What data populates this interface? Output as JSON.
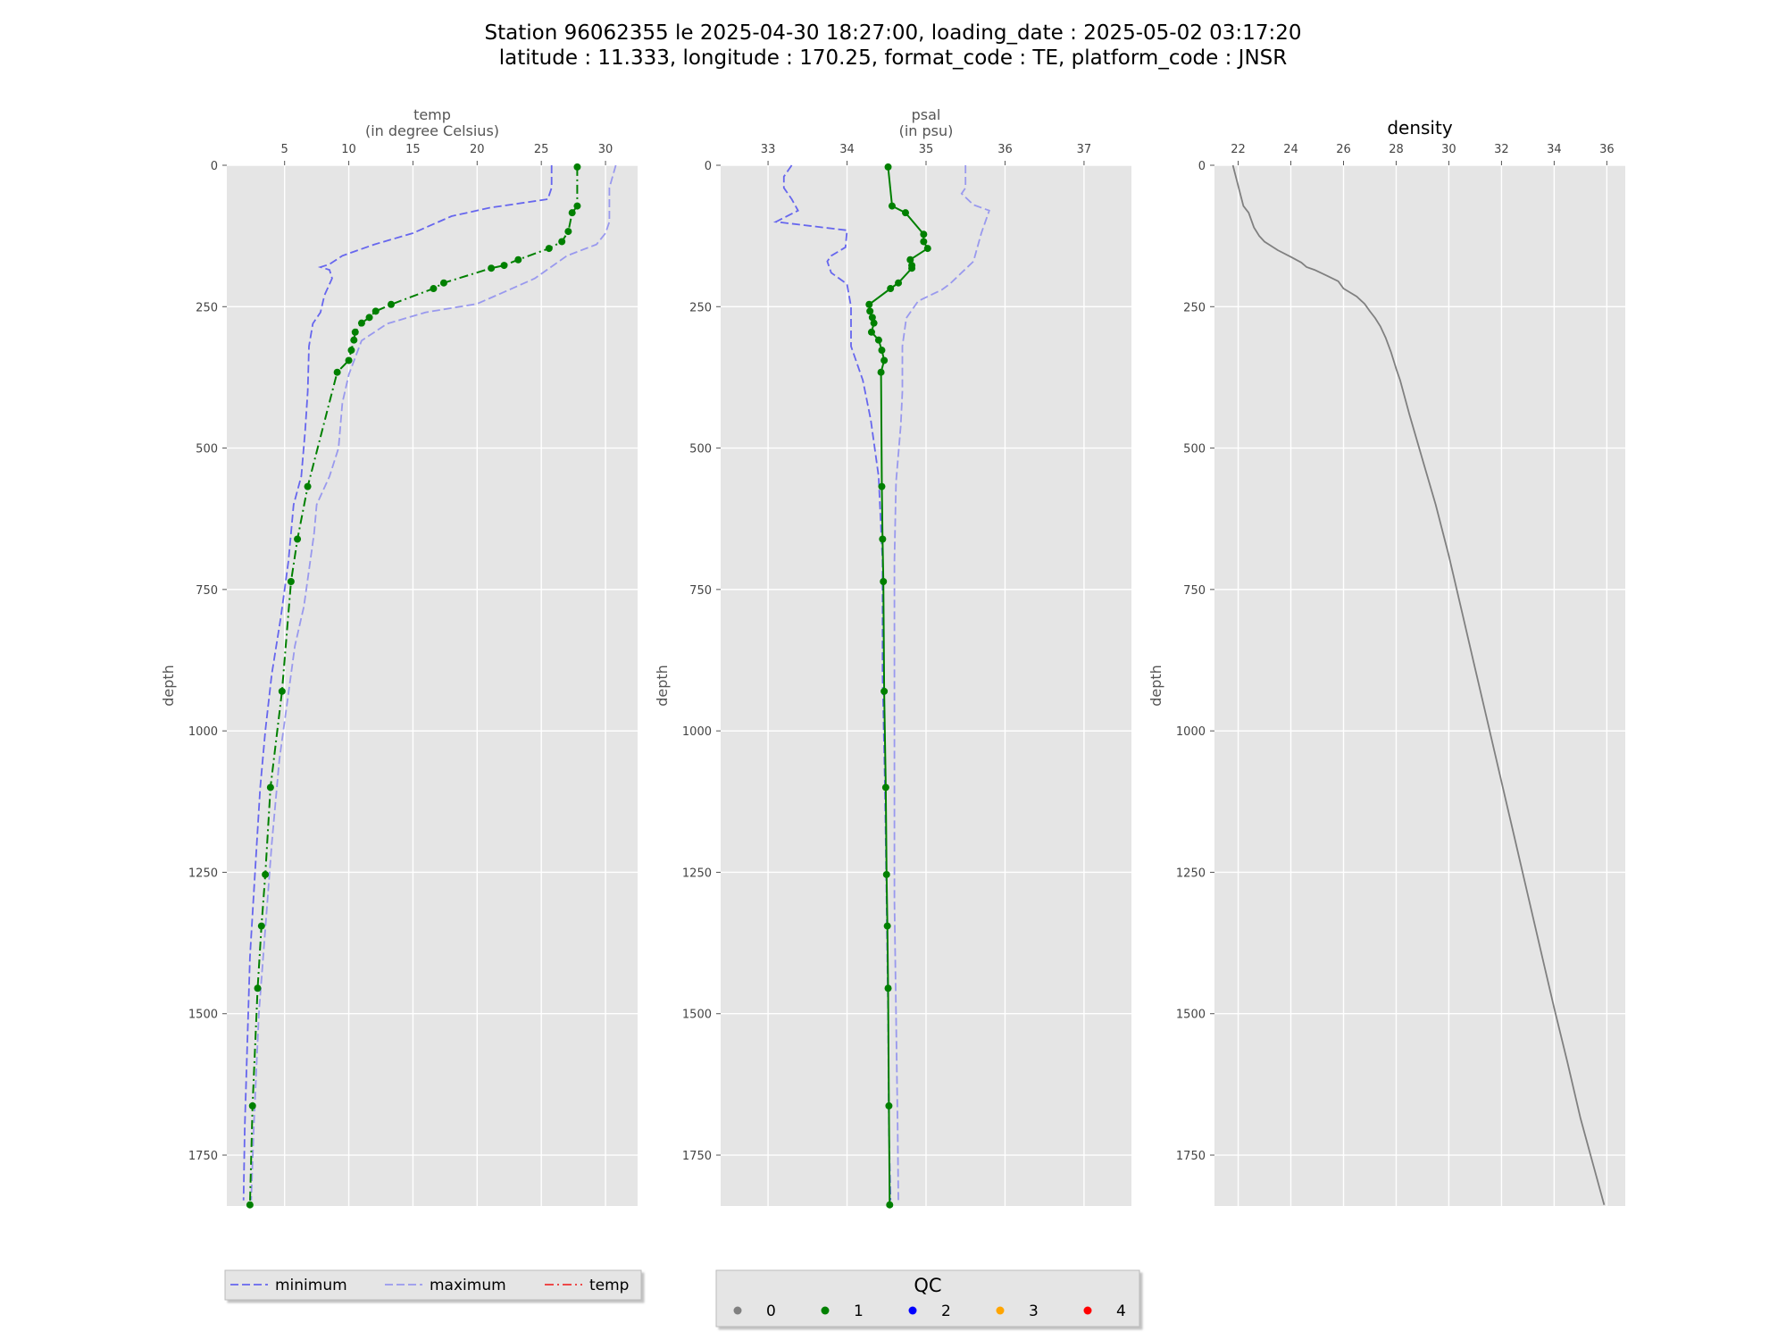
{
  "title": {
    "line1": "Station 96062355 le 2025-04-30 18:27:00, loading_date : 2025-05-02 03:17:20",
    "line2": "latitude : 11.333, longitude : 170.25, format_code : TE, platform_code : JNSR"
  },
  "colors": {
    "panel_bg": "#e5e5e5",
    "grid": "#ffffff",
    "minimum": "#6666ee",
    "maximum": "#9999ee",
    "profile": "#008000",
    "density": "#808080",
    "legend_temp": "#ee3333"
  },
  "chart_data": [
    {
      "type": "line",
      "id": "temp",
      "xlabel_line1": "temp",
      "xlabel_line2": "(in degree Celsius)",
      "ylabel": "depth",
      "xlim": [
        0.5,
        32.5
      ],
      "ylim": [
        1840,
        0
      ],
      "y_inverted": true,
      "x_axis_position": "top",
      "xticks": [
        5,
        10,
        15,
        20,
        25,
        30
      ],
      "yticks": [
        0,
        250,
        500,
        750,
        1000,
        1250,
        1500,
        1750
      ],
      "grid": true,
      "series": [
        {
          "name": "minimum",
          "style": "dashed",
          "color": "#6666ee",
          "points": [
            [
              25.8,
              0
            ],
            [
              25.8,
              40
            ],
            [
              25.5,
              60
            ],
            [
              21,
              75
            ],
            [
              18,
              90
            ],
            [
              15,
              120
            ],
            [
              12,
              140
            ],
            [
              9.5,
              160
            ],
            [
              8.5,
              175
            ],
            [
              7.8,
              180
            ],
            [
              8.5,
              185
            ],
            [
              8.7,
              200
            ],
            [
              8.1,
              230
            ],
            [
              7.8,
              260
            ],
            [
              7.2,
              280
            ],
            [
              6.9,
              320
            ],
            [
              6.8,
              400
            ],
            [
              6.6,
              470
            ],
            [
              6.3,
              550
            ],
            [
              5.7,
              600
            ],
            [
              5.3,
              700
            ],
            [
              4.7,
              800
            ],
            [
              4.0,
              900
            ],
            [
              3.5,
              1000
            ],
            [
              3.1,
              1100
            ],
            [
              2.7,
              1250
            ],
            [
              2.3,
              1400
            ],
            [
              2.1,
              1550
            ],
            [
              1.9,
              1700
            ],
            [
              1.8,
              1830
            ]
          ]
        },
        {
          "name": "maximum",
          "style": "dashed",
          "color": "#9999ee",
          "points": [
            [
              30.8,
              0
            ],
            [
              30.3,
              40
            ],
            [
              30.3,
              100
            ],
            [
              30.0,
              120
            ],
            [
              29.3,
              140
            ],
            [
              27.0,
              160
            ],
            [
              24.5,
              200
            ],
            [
              22.5,
              220
            ],
            [
              20.0,
              245
            ],
            [
              16.0,
              260
            ],
            [
              13.0,
              280
            ],
            [
              11.0,
              310
            ],
            [
              10.0,
              370
            ],
            [
              9.5,
              420
            ],
            [
              9.2,
              500
            ],
            [
              8.5,
              550
            ],
            [
              7.5,
              600
            ],
            [
              7.3,
              650
            ],
            [
              7.0,
              700
            ],
            [
              6.5,
              780
            ],
            [
              5.8,
              850
            ],
            [
              5.2,
              950
            ],
            [
              4.6,
              1050
            ],
            [
              4.0,
              1200
            ],
            [
              3.5,
              1350
            ],
            [
              3.0,
              1500
            ],
            [
              2.6,
              1700
            ],
            [
              2.4,
              1830
            ]
          ]
        },
        {
          "name": "temp",
          "style": "dashdot",
          "color": "#008000",
          "qc": 1,
          "points": [
            [
              27.8,
              3
            ],
            [
              27.8,
              72
            ],
            [
              27.4,
              84
            ],
            [
              27.1,
              117
            ],
            [
              26.6,
              135
            ],
            [
              25.6,
              147
            ],
            [
              23.2,
              167
            ],
            [
              22.1,
              177
            ],
            [
              21.1,
              182
            ],
            [
              17.4,
              208
            ],
            [
              16.6,
              218
            ],
            [
              13.3,
              246
            ],
            [
              12.1,
              258
            ],
            [
              11.6,
              269
            ],
            [
              11.0,
              279
            ],
            [
              10.5,
              295
            ],
            [
              10.4,
              309
            ],
            [
              10.2,
              327
            ],
            [
              10.0,
              345
            ],
            [
              9.1,
              366
            ],
            [
              6.8,
              568
            ],
            [
              6.0,
              661
            ],
            [
              5.5,
              736
            ],
            [
              4.8,
              930
            ],
            [
              3.9,
              1100
            ],
            [
              3.5,
              1254
            ],
            [
              3.2,
              1345
            ],
            [
              2.9,
              1455
            ],
            [
              2.5,
              1663
            ],
            [
              2.3,
              1838
            ]
          ]
        }
      ]
    },
    {
      "type": "line",
      "id": "psal",
      "xlabel_line1": "psal",
      "xlabel_line2": "(in psu)",
      "ylabel": "depth",
      "xlim": [
        32.4,
        37.6
      ],
      "ylim": [
        1840,
        0
      ],
      "y_inverted": true,
      "x_axis_position": "top",
      "xticks": [
        33,
        34,
        35,
        36,
        37
      ],
      "yticks": [
        0,
        250,
        500,
        750,
        1000,
        1250,
        1500,
        1750
      ],
      "grid": true,
      "series": [
        {
          "name": "minimum",
          "style": "dashed",
          "color": "#6666ee",
          "points": [
            [
              33.3,
              0
            ],
            [
              33.2,
              20
            ],
            [
              33.2,
              40
            ],
            [
              33.3,
              60
            ],
            [
              33.38,
              80
            ],
            [
              33.1,
              100
            ],
            [
              34.0,
              115
            ],
            [
              33.98,
              145
            ],
            [
              33.8,
              160
            ],
            [
              33.75,
              170
            ],
            [
              33.8,
              190
            ],
            [
              34.0,
              210
            ],
            [
              34.05,
              250
            ],
            [
              34.05,
              320
            ],
            [
              34.2,
              380
            ],
            [
              34.3,
              450
            ],
            [
              34.4,
              550
            ],
            [
              34.45,
              700
            ],
            [
              34.45,
              900
            ],
            [
              34.48,
              1100
            ],
            [
              34.5,
              1300
            ],
            [
              34.52,
              1500
            ],
            [
              34.53,
              1700
            ],
            [
              34.55,
              1830
            ]
          ]
        },
        {
          "name": "maximum",
          "style": "dashed",
          "color": "#9999ee",
          "points": [
            [
              35.5,
              0
            ],
            [
              35.5,
              40
            ],
            [
              35.45,
              50
            ],
            [
              35.6,
              70
            ],
            [
              35.8,
              80
            ],
            [
              35.7,
              120
            ],
            [
              35.6,
              170
            ],
            [
              35.3,
              210
            ],
            [
              35.2,
              220
            ],
            [
              34.9,
              240
            ],
            [
              34.75,
              270
            ],
            [
              34.7,
              320
            ],
            [
              34.7,
              400
            ],
            [
              34.68,
              460
            ],
            [
              34.62,
              560
            ],
            [
              34.6,
              700
            ],
            [
              34.6,
              900
            ],
            [
              34.6,
              1100
            ],
            [
              34.6,
              1300
            ],
            [
              34.62,
              1500
            ],
            [
              34.64,
              1700
            ],
            [
              34.65,
              1830
            ]
          ]
        },
        {
          "name": "psal",
          "style": "solid",
          "color": "#008000",
          "qc": 1,
          "points": [
            [
              34.52,
              3
            ],
            [
              34.57,
              72
            ],
            [
              34.74,
              84
            ],
            [
              34.97,
              122
            ],
            [
              34.97,
              135
            ],
            [
              35.02,
              147
            ],
            [
              34.8,
              167
            ],
            [
              34.82,
              177
            ],
            [
              34.82,
              182
            ],
            [
              34.65,
              208
            ],
            [
              34.55,
              218
            ],
            [
              34.28,
              246
            ],
            [
              34.29,
              258
            ],
            [
              34.32,
              269
            ],
            [
              34.34,
              279
            ],
            [
              34.31,
              295
            ],
            [
              34.4,
              309
            ],
            [
              34.44,
              327
            ],
            [
              34.47,
              345
            ],
            [
              34.43,
              366
            ],
            [
              34.44,
              568
            ],
            [
              34.45,
              661
            ],
            [
              34.46,
              736
            ],
            [
              34.47,
              930
            ],
            [
              34.49,
              1100
            ],
            [
              34.5,
              1254
            ],
            [
              34.51,
              1345
            ],
            [
              34.52,
              1455
            ],
            [
              34.53,
              1663
            ],
            [
              34.54,
              1838
            ]
          ]
        }
      ]
    },
    {
      "type": "line",
      "id": "density",
      "title": "density",
      "ylabel": "depth",
      "xlim": [
        21.1,
        36.7
      ],
      "ylim": [
        1840,
        0
      ],
      "y_inverted": true,
      "x_axis_position": "top",
      "xticks": [
        22,
        24,
        26,
        28,
        30,
        32,
        34,
        36
      ],
      "yticks": [
        0,
        250,
        500,
        750,
        1000,
        1250,
        1500,
        1750
      ],
      "grid": true,
      "series": [
        {
          "style": "solid",
          "color": "#808080",
          "points": [
            [
              21.8,
              0
            ],
            [
              22.2,
              72
            ],
            [
              22.4,
              84
            ],
            [
              22.6,
              110
            ],
            [
              22.8,
              125
            ],
            [
              23.0,
              135
            ],
            [
              23.5,
              150
            ],
            [
              24.0,
              162
            ],
            [
              24.4,
              172
            ],
            [
              24.6,
              180
            ],
            [
              24.9,
              185
            ],
            [
              25.4,
              196
            ],
            [
              25.8,
              205
            ],
            [
              26.0,
              218
            ],
            [
              26.5,
              232
            ],
            [
              26.8,
              245
            ],
            [
              27.0,
              258
            ],
            [
              27.2,
              270
            ],
            [
              27.4,
              285
            ],
            [
              27.6,
              305
            ],
            [
              27.8,
              330
            ],
            [
              28.0,
              360
            ],
            [
              28.15,
              380
            ],
            [
              28.5,
              440
            ],
            [
              29.0,
              520
            ],
            [
              29.5,
              600
            ],
            [
              30.0,
              690
            ],
            [
              30.5,
              790
            ],
            [
              31.0,
              890
            ],
            [
              31.5,
              990
            ],
            [
              32.0,
              1090
            ],
            [
              32.5,
              1190
            ],
            [
              33.0,
              1290
            ],
            [
              33.5,
              1390
            ],
            [
              34.0,
              1490
            ],
            [
              34.5,
              1585
            ],
            [
              35.0,
              1685
            ],
            [
              35.5,
              1770
            ],
            [
              35.9,
              1838
            ]
          ]
        }
      ]
    }
  ],
  "legend_profile": {
    "entries": [
      {
        "label": "minimum",
        "style": "dashed",
        "color": "#6666ee"
      },
      {
        "label": "maximum",
        "style": "dashed",
        "color": "#9999ee"
      },
      {
        "label": "temp",
        "style": "dashdot",
        "color": "#ee3333"
      }
    ]
  },
  "legend_qc": {
    "title": "QC",
    "entries": [
      {
        "label": "0",
        "color": "#808080"
      },
      {
        "label": "1",
        "color": "#008000"
      },
      {
        "label": "2",
        "color": "#0000ff"
      },
      {
        "label": "3",
        "color": "#ffa500"
      },
      {
        "label": "4",
        "color": "#ff0000"
      }
    ]
  }
}
